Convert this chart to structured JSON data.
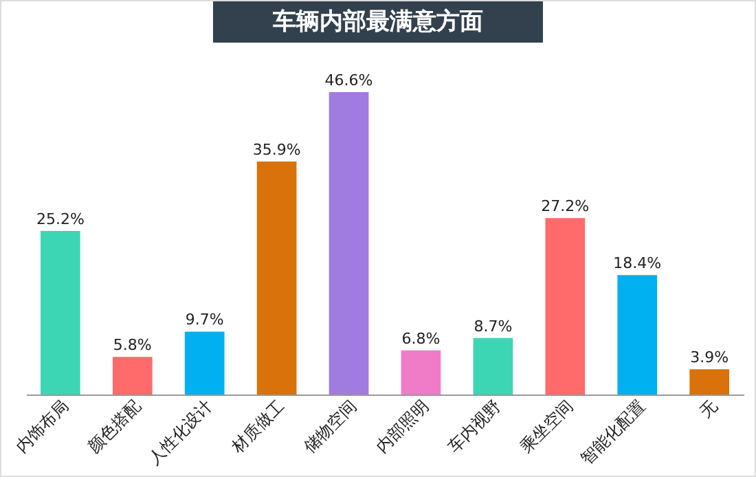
{
  "chart_data": {
    "type": "bar",
    "title": "车辆内部最满意方面",
    "categories": [
      "内饰布局",
      "颜色搭配",
      "人性化设计",
      "材质做工",
      "储物空间",
      "内部照明",
      "车内视野",
      "乘坐空间",
      "智能化配置",
      "无"
    ],
    "values": [
      25.2,
      5.8,
      9.7,
      35.9,
      46.6,
      6.8,
      8.7,
      27.2,
      18.4,
      3.9
    ],
    "colors": [
      "#3dd6b5",
      "#ff6b6b",
      "#00b0f0",
      "#d9720a",
      "#a07be0",
      "#f07cc8",
      "#3dd6b5",
      "#ff6b6b",
      "#00b0f0",
      "#d9720a"
    ],
    "value_labels": [
      "25.2%",
      "5.8%",
      "9.7%",
      "35.9%",
      "46.6%",
      "6.8%",
      "8.7%",
      "27.2%",
      "18.4%",
      "3.9%"
    ]
  }
}
